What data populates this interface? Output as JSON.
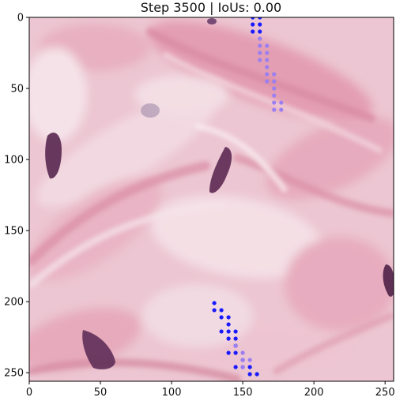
{
  "title": "Step 3500 | IoUs: 0.00",
  "chart_data": {
    "type": "scatter",
    "title": "Step 3500 | IoUs: 0.00",
    "xlabel": "",
    "ylabel": "",
    "xlim": [
      0,
      256
    ],
    "ylim": [
      256,
      0
    ],
    "xticks": [
      0,
      50,
      100,
      150,
      200,
      250
    ],
    "yticks": [
      0,
      50,
      100,
      150,
      200,
      250
    ],
    "grid": false,
    "legend": "none",
    "background": "histology-image",
    "series": [
      {
        "color": "#1a1aff",
        "points": [
          [
            157,
            0
          ],
          [
            162,
            0
          ],
          [
            157,
            5
          ],
          [
            162,
            5
          ],
          [
            157,
            10
          ],
          [
            162,
            10
          ],
          [
            130,
            201
          ],
          [
            130,
            206
          ],
          [
            135,
            206
          ],
          [
            135,
            211
          ],
          [
            140,
            211
          ],
          [
            140,
            216
          ],
          [
            135,
            221
          ],
          [
            140,
            221
          ],
          [
            145,
            221
          ],
          [
            140,
            226
          ],
          [
            145,
            226
          ],
          [
            145,
            231
          ],
          [
            145,
            236
          ],
          [
            140,
            236
          ],
          [
            150,
            241
          ],
          [
            145,
            246
          ],
          [
            150,
            246
          ],
          [
            155,
            246
          ],
          [
            155,
            251
          ],
          [
            160,
            251
          ]
        ]
      },
      {
        "color": "#9b7ff0",
        "points": [
          [
            162,
            15
          ],
          [
            162,
            20
          ],
          [
            167,
            20
          ],
          [
            162,
            25
          ],
          [
            167,
            25
          ],
          [
            162,
            30
          ],
          [
            167,
            30
          ],
          [
            167,
            35
          ],
          [
            167,
            40
          ],
          [
            172,
            40
          ],
          [
            167,
            45
          ],
          [
            172,
            45
          ],
          [
            172,
            50
          ],
          [
            172,
            55
          ],
          [
            172,
            60
          ],
          [
            177,
            60
          ],
          [
            172,
            65
          ],
          [
            177,
            65
          ],
          [
            145,
            231
          ],
          [
            150,
            236
          ],
          [
            150,
            241
          ],
          [
            155,
            241
          ],
          [
            150,
            246
          ]
        ]
      }
    ]
  }
}
